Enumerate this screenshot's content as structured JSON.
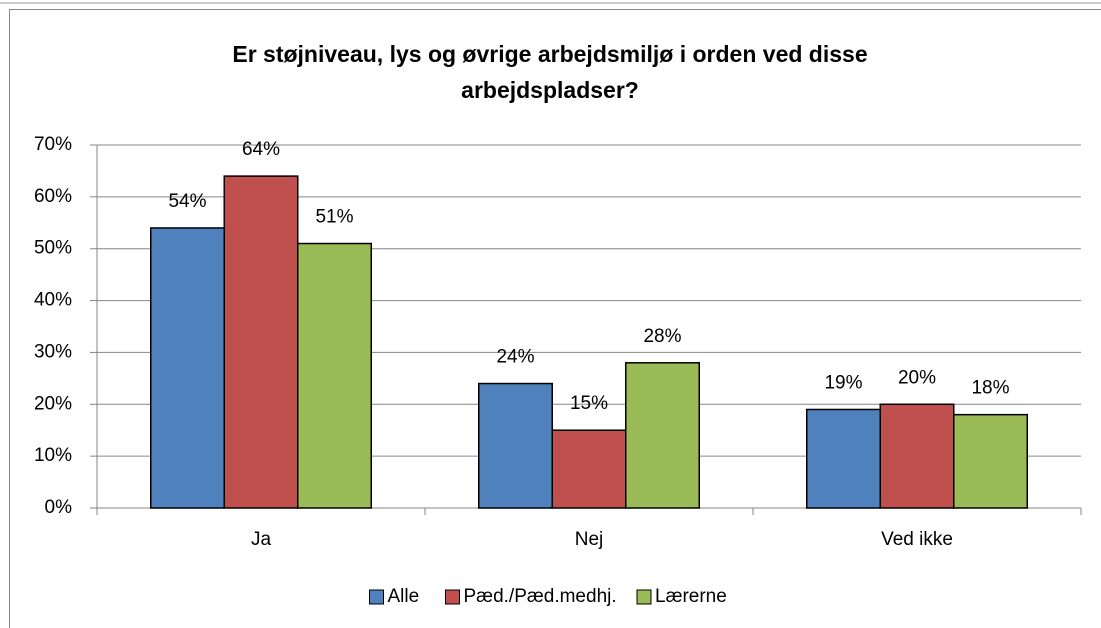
{
  "chart_data": {
    "type": "bar",
    "title": [
      "Er støjniveau, lys og øvrige arbejdsmiljø i orden ved disse",
      "arbejdspladser?"
    ],
    "categories": [
      "Ja",
      "Nej",
      "Ved ikke"
    ],
    "series": [
      {
        "name": "Alle",
        "color": "#4f81bd",
        "values": [
          54,
          24,
          19
        ],
        "value_labels": [
          "54%",
          "24%",
          "19%"
        ]
      },
      {
        "name": "Pæd./Pæd.medhj.",
        "color": "#c0504d",
        "values": [
          64,
          15,
          20
        ],
        "value_labels": [
          "64%",
          "15%",
          "20%"
        ]
      },
      {
        "name": "Lærerne",
        "color": "#9bbb59",
        "values": [
          51,
          28,
          18
        ],
        "value_labels": [
          "51%",
          "28%",
          "18%"
        ]
      }
    ],
    "ylim": [
      0,
      70
    ],
    "yticks": [
      {
        "value": 0,
        "label": "0%"
      },
      {
        "value": 10,
        "label": "10%"
      },
      {
        "value": 20,
        "label": "20%"
      },
      {
        "value": 30,
        "label": "30%"
      },
      {
        "value": 40,
        "label": "40%"
      },
      {
        "value": 50,
        "label": "50%"
      },
      {
        "value": 60,
        "label": "60%"
      },
      {
        "value": 70,
        "label": "70%"
      }
    ],
    "grid": true,
    "legend": "bottom"
  }
}
